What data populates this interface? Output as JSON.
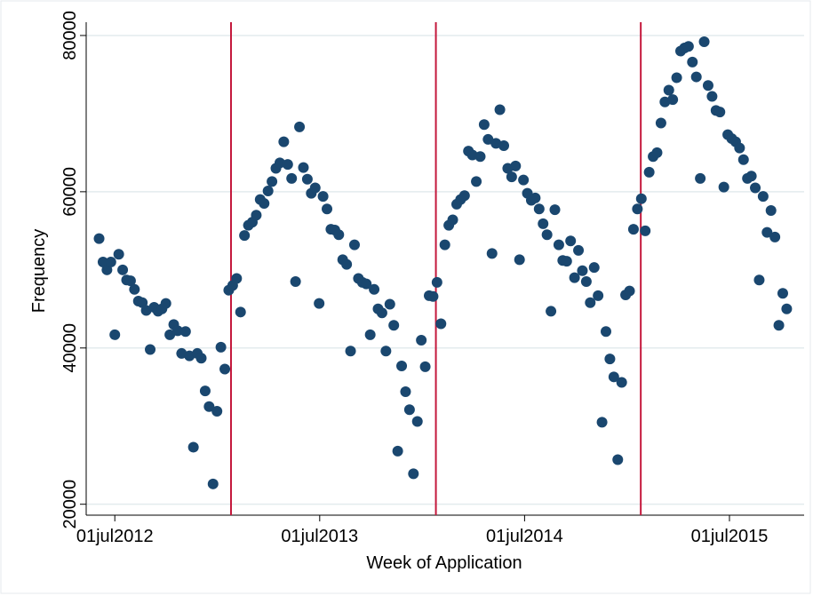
{
  "chart_data": {
    "type": "scatter",
    "xlabel": "Week of Application",
    "ylabel": "Frequency",
    "xlim": [
      "2012-05-11",
      "2015-11-11"
    ],
    "ylim": [
      18600,
      81700
    ],
    "xticks": [
      {
        "value": "2012-07-01",
        "label": "01jul2012"
      },
      {
        "value": "2013-07-01",
        "label": "01jul2013"
      },
      {
        "value": "2014-07-01",
        "label": "01jul2014"
      },
      {
        "value": "2015-07-01",
        "label": "01jul2015"
      }
    ],
    "yticks": [
      20000,
      40000,
      60000,
      80000
    ],
    "grid": true,
    "vlines": [
      "2013-01-24",
      "2014-01-24",
      "2015-01-24"
    ],
    "vline_color": "#c4183c",
    "series": [
      {
        "color": "#1a476f",
        "x": [
          "2012-06-03",
          "2012-06-10",
          "2012-06-17",
          "2012-06-24",
          "2012-07-01",
          "2012-07-08",
          "2012-07-15",
          "2012-07-22",
          "2012-07-29",
          "2012-08-05",
          "2012-08-12",
          "2012-08-19",
          "2012-08-26",
          "2012-09-02",
          "2012-09-09",
          "2012-09-16",
          "2012-09-23",
          "2012-09-30",
          "2012-10-07",
          "2012-10-14",
          "2012-10-21",
          "2012-10-28",
          "2012-11-04",
          "2012-11-11",
          "2012-11-18",
          "2012-11-25",
          "2012-12-02",
          "2012-12-09",
          "2012-12-16",
          "2012-12-23",
          "2012-12-30",
          "2013-01-06",
          "2013-01-13",
          "2013-01-20",
          "2013-01-27",
          "2013-02-03",
          "2013-02-10",
          "2013-02-17",
          "2013-02-24",
          "2013-03-03",
          "2013-03-10",
          "2013-03-17",
          "2013-03-24",
          "2013-03-31",
          "2013-04-07",
          "2013-04-14",
          "2013-04-21",
          "2013-04-28",
          "2013-05-05",
          "2013-05-12",
          "2013-05-19",
          "2013-05-26",
          "2013-06-02",
          "2013-06-09",
          "2013-06-16",
          "2013-06-23",
          "2013-06-30",
          "2013-07-07",
          "2013-07-14",
          "2013-07-21",
          "2013-07-28",
          "2013-08-04",
          "2013-08-11",
          "2013-08-18",
          "2013-08-25",
          "2013-09-01",
          "2013-09-08",
          "2013-09-15",
          "2013-09-22",
          "2013-09-29",
          "2013-10-06",
          "2013-10-13",
          "2013-10-20",
          "2013-10-27",
          "2013-11-03",
          "2013-11-10",
          "2013-11-17",
          "2013-11-24",
          "2013-12-01",
          "2013-12-08",
          "2013-12-15",
          "2013-12-22",
          "2013-12-29",
          "2014-01-05",
          "2014-01-12",
          "2014-01-19",
          "2014-01-26",
          "2014-02-02",
          "2014-02-09",
          "2014-02-16",
          "2014-02-23",
          "2014-03-02",
          "2014-03-09",
          "2014-03-16",
          "2014-03-23",
          "2014-03-30",
          "2014-04-06",
          "2014-04-13",
          "2014-04-20",
          "2014-04-27",
          "2014-05-04",
          "2014-05-11",
          "2014-05-18",
          "2014-05-25",
          "2014-06-01",
          "2014-06-08",
          "2014-06-15",
          "2014-06-22",
          "2014-06-29",
          "2014-07-06",
          "2014-07-13",
          "2014-07-20",
          "2014-07-27",
          "2014-08-03",
          "2014-08-10",
          "2014-08-17",
          "2014-08-24",
          "2014-08-31",
          "2014-09-07",
          "2014-09-14",
          "2014-09-21",
          "2014-09-28",
          "2014-10-05",
          "2014-10-12",
          "2014-10-19",
          "2014-10-26",
          "2014-11-02",
          "2014-11-09",
          "2014-11-16",
          "2014-11-23",
          "2014-11-30",
          "2014-12-07",
          "2014-12-14",
          "2014-12-21",
          "2014-12-28",
          "2015-01-04",
          "2015-01-11",
          "2015-01-18",
          "2015-01-25",
          "2015-02-01",
          "2015-02-08",
          "2015-02-15",
          "2015-02-22",
          "2015-03-01",
          "2015-03-08",
          "2015-03-15",
          "2015-03-22",
          "2015-03-29",
          "2015-04-05",
          "2015-04-12",
          "2015-04-19",
          "2015-04-26",
          "2015-05-03",
          "2015-05-10",
          "2015-05-17",
          "2015-05-24",
          "2015-05-31",
          "2015-06-07",
          "2015-06-14",
          "2015-06-21",
          "2015-06-28",
          "2015-07-05",
          "2015-07-12",
          "2015-07-19",
          "2015-07-26",
          "2015-08-02",
          "2015-08-09",
          "2015-08-16",
          "2015-08-23",
          "2015-08-30",
          "2015-09-06",
          "2015-09-13",
          "2015-09-20",
          "2015-09-27",
          "2015-10-04",
          "2015-10-11"
        ],
        "values": [
          54000,
          51000,
          50000,
          51000,
          41700,
          52000,
          50000,
          48700,
          48600,
          47500,
          46000,
          45800,
          44800,
          39800,
          45200,
          44700,
          45000,
          45700,
          41700,
          43000,
          42200,
          39300,
          42100,
          39000,
          27300,
          39300,
          38700,
          34500,
          32500,
          22600,
          31900,
          40100,
          37300,
          47400,
          48000,
          48900,
          44600,
          54400,
          55700,
          56100,
          57000,
          59000,
          58500,
          60100,
          61300,
          63000,
          63700,
          66400,
          63500,
          61700,
          48500,
          68300,
          63100,
          61600,
          59800,
          60500,
          45700,
          59400,
          57800,
          55200,
          55100,
          54500,
          51300,
          50700,
          39600,
          53200,
          48900,
          48400,
          48200,
          41700,
          47500,
          45000,
          44500,
          39600,
          45600,
          42900,
          26800,
          37700,
          34400,
          32100,
          23900,
          30600,
          41000,
          37600,
          46700,
          46600,
          48400,
          43100,
          53200,
          55700,
          56400,
          58400,
          59000,
          59500,
          65200,
          64700,
          61300,
          64500,
          68600,
          66700,
          52100,
          66200,
          70500,
          65900,
          63000,
          61900,
          63300,
          51300,
          61500,
          59800,
          58900,
          59200,
          57800,
          55900,
          54500,
          44700,
          57700,
          53200,
          51200,
          51100,
          53700,
          49000,
          52500,
          49900,
          48500,
          45800,
          50300,
          46700,
          30500,
          42100,
          38600,
          36300,
          25700,
          35600,
          46800,
          47300,
          55200,
          57800,
          59100,
          55000,
          62500,
          64500,
          65000,
          68800,
          71500,
          73000,
          71800,
          74600,
          78000,
          78400,
          78600,
          76600,
          74700,
          61700,
          79200,
          73600,
          72200,
          70400,
          70200,
          60600,
          67300,
          66800,
          66400,
          65600,
          64100,
          61700,
          62000,
          60500,
          48700,
          59400,
          54800,
          57600,
          54200,
          42900,
          47000,
          45000
        ]
      }
    ]
  }
}
